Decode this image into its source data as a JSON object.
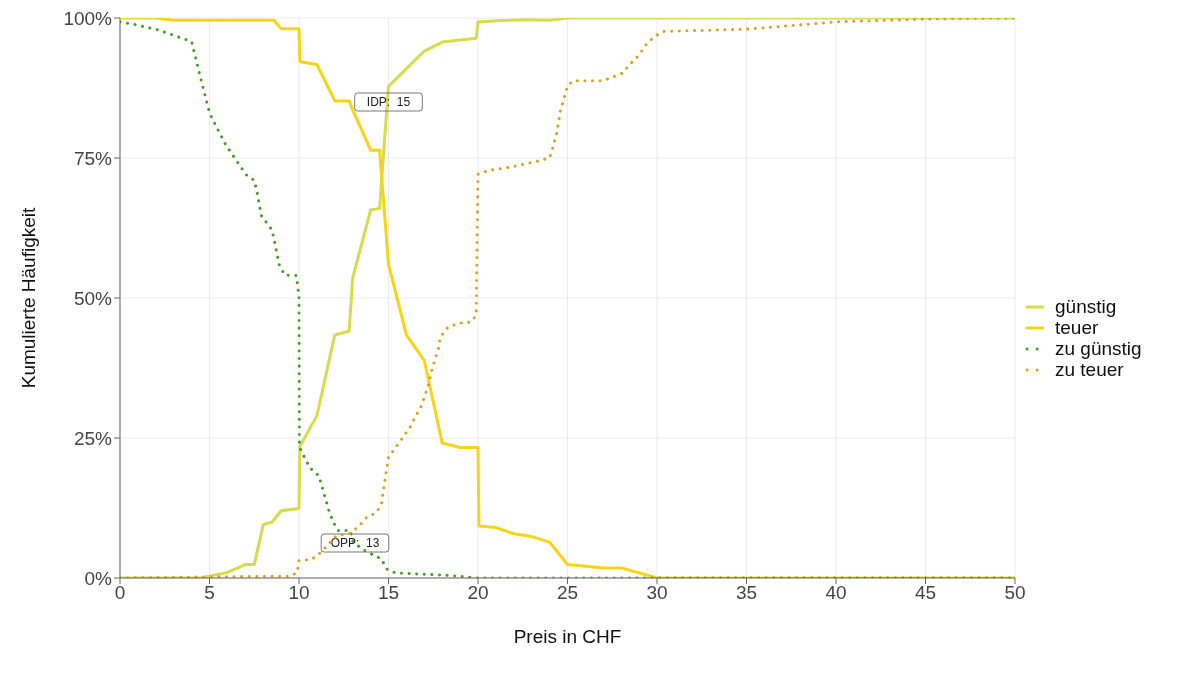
{
  "chart_data": {
    "type": "line",
    "xlabel": "Preis in CHF",
    "ylabel": "Kumulierte Häufigkeit",
    "xlim": [
      0,
      50
    ],
    "xticks": [
      0,
      5,
      10,
      15,
      20,
      25,
      30,
      35,
      40,
      45,
      50
    ],
    "ylim": [
      0,
      100
    ],
    "yticks": [
      {
        "value": 0,
        "label": "0%"
      },
      {
        "value": 25,
        "label": "25%"
      },
      {
        "value": 50,
        "label": "50%"
      },
      {
        "value": 75,
        "label": "75%"
      },
      {
        "value": 100,
        "label": "100%"
      }
    ],
    "grid": true,
    "legend": "right",
    "marker": "none",
    "series": [
      {
        "name": "günstig",
        "color": "#d6dc4a",
        "line_style": "solid",
        "x": [
          0,
          4.5,
          5,
          6,
          7,
          7.5,
          8,
          8.5,
          9,
          10,
          10.05,
          11,
          12,
          12.8,
          13,
          14,
          14.5,
          15,
          17,
          18,
          19.9,
          20,
          21,
          22.6,
          24,
          25,
          50
        ],
        "values": [
          0,
          0,
          0.3,
          1,
          2.4,
          2.4,
          9.5,
          10,
          12,
          12.4,
          23.5,
          29,
          43.4,
          44.1,
          53.6,
          65.7,
          66,
          87.8,
          94.1,
          95.7,
          96.4,
          99.3,
          99.5,
          99.7,
          99.6,
          100,
          100
        ]
      },
      {
        "name": "teuer",
        "color": "#f5d514",
        "line_style": "solid",
        "x": [
          0,
          2,
          3,
          8.6,
          9,
          10,
          10.05,
          11,
          12,
          12.8,
          13,
          14,
          14.5,
          15,
          16,
          17,
          18,
          19,
          20,
          20.05,
          21,
          22,
          23,
          24,
          25,
          26,
          27,
          28,
          30,
          50
        ],
        "values": [
          100,
          100,
          99.6,
          99.6,
          98.1,
          98.1,
          92.2,
          91.7,
          85.2,
          85.2,
          83.6,
          76.4,
          76.4,
          56,
          43.4,
          38.8,
          24.1,
          23.3,
          23.3,
          9.3,
          9,
          7.9,
          7.4,
          6.4,
          2.4,
          2.1,
          1.8,
          1.8,
          0,
          0
        ]
      },
      {
        "name": "zu günstig",
        "color": "#4e9a2e",
        "line_style": "dotted",
        "x": [
          0,
          0.73,
          1.4,
          2.1,
          2.75,
          3.36,
          4,
          4.17,
          4.5,
          4.83,
          5,
          5.3,
          5.9,
          6.3,
          7.05,
          7.5,
          7.65,
          7.9,
          8.5,
          8.9,
          9.2,
          9.85,
          10,
          10.02,
          10.6,
          11.1,
          11.3,
          11.66,
          11.9,
          12.17,
          12.85,
          13,
          13.5,
          14.1,
          14.6,
          14.9,
          15.4,
          16.8,
          18.2,
          19.4,
          20,
          50
        ],
        "values": [
          99.3,
          98.9,
          98.4,
          97.9,
          97.2,
          96.5,
          95.8,
          93.6,
          89.3,
          85.2,
          83.1,
          81.1,
          77.4,
          75.5,
          72,
          71,
          69,
          64.7,
          62.1,
          55.9,
          54.1,
          54,
          50.2,
          23.4,
          19.7,
          18.3,
          16.2,
          12.1,
          10.1,
          8.5,
          8.5,
          6.6,
          5.2,
          4.2,
          3.4,
          1.6,
          0.9,
          0.7,
          0.5,
          0.2,
          0,
          0
        ]
      },
      {
        "name": "zu teuer",
        "color": "#d9a424",
        "line_style": "dotted",
        "x": [
          0,
          8,
          9.5,
          9.9,
          10,
          10.7,
          11.2,
          11.66,
          12.1,
          12.8,
          13.3,
          13.8,
          14.3,
          14.6,
          14.8,
          15,
          15.4,
          15.8,
          16.2,
          16.5,
          16.85,
          17.25,
          17.4,
          17.8,
          17.9,
          18.3,
          18.9,
          19.6,
          19.9,
          20,
          20.6,
          21.3,
          22,
          22.7,
          23.3,
          24,
          24.2,
          24.4,
          24.6,
          24.8,
          25,
          25.3,
          27,
          27.4,
          28.1,
          28.5,
          29,
          29.4,
          29.9,
          30.4,
          35,
          40,
          45,
          50
        ],
        "values": [
          0,
          0.3,
          0.3,
          1,
          3.1,
          3.3,
          4.5,
          6.1,
          7.6,
          7.9,
          9.1,
          10.9,
          11.6,
          13.1,
          17.4,
          21.6,
          23.3,
          25.1,
          26.9,
          28.8,
          30.8,
          34.7,
          36.9,
          41.1,
          43.1,
          44.7,
          45.5,
          45.7,
          46.9,
          72.1,
          72.8,
          73.1,
          73.5,
          74,
          74.4,
          75,
          77.1,
          79.5,
          83.3,
          85.6,
          87.8,
          88.8,
          88.8,
          89.3,
          90.2,
          91.8,
          93.4,
          95.3,
          96.8,
          97.6,
          98,
          99.3,
          99.8,
          100
        ]
      }
    ],
    "annotations": [
      {
        "text": "IDP:  15",
        "x": 15,
        "y": 85
      },
      "OPP:  13"
    ]
  }
}
